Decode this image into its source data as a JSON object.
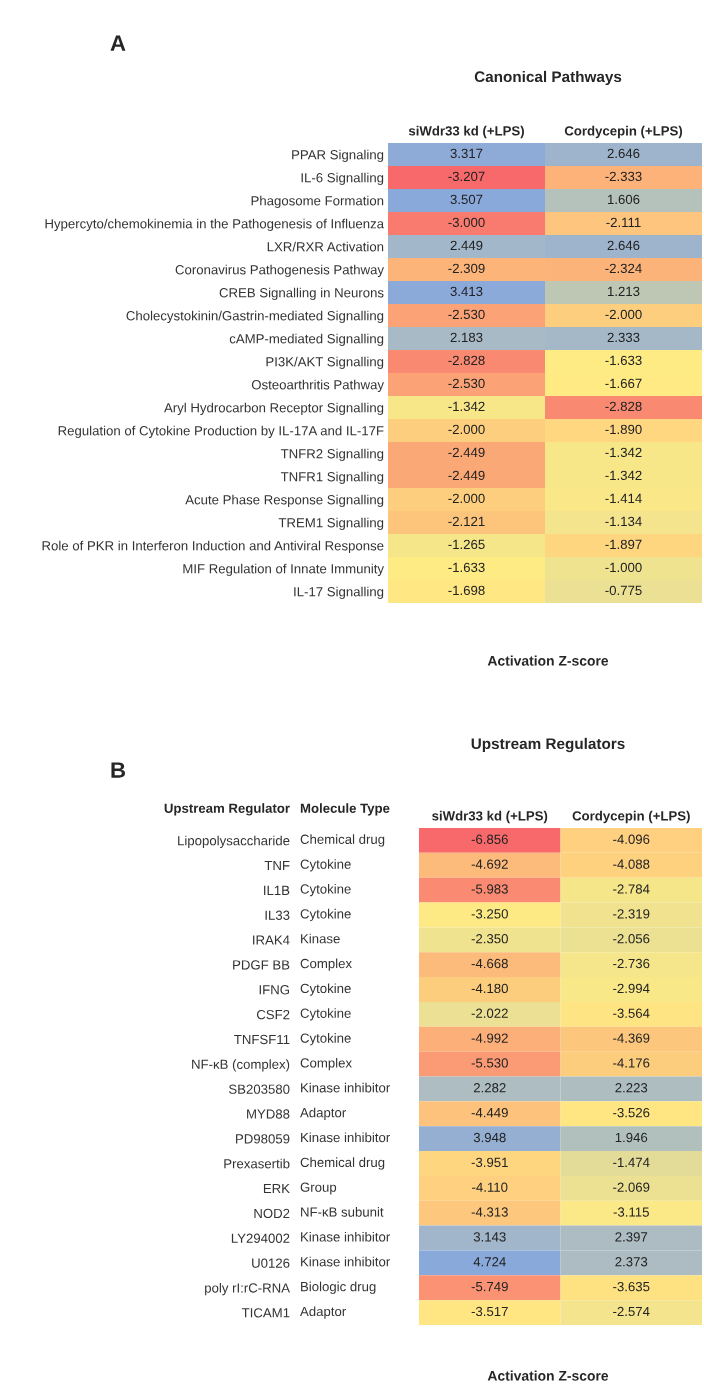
{
  "chart_data": [
    {
      "type": "heatmap",
      "title": "Canonical Pathways",
      "xlabel": "Activation Z-score",
      "annotations": [
        "A"
      ],
      "categories": [
        "siWdr33 kd (+LPS)",
        "Cordycepin (+LPS)"
      ],
      "y_categories": [
        "PPAR Signaling",
        "IL-6 Signalling",
        "Phagosome Formation",
        "Hypercyto/chemokinemia in the Pathogenesis of Influenza",
        "LXR/RXR Activation",
        "Coronavirus Pathogenesis Pathway",
        "CREB Signalling in Neurons",
        "Cholecystokinin/Gastrin-mediated Signalling",
        "cAMP-mediated Signalling",
        "PI3K/AKT Signalling",
        "Osteoarthritis Pathway",
        "Aryl Hydrocarbon Receptor Signalling",
        "Regulation of Cytokine Production by IL-17A and IL-17F",
        "TNFR2 Signalling",
        "TNFR1 Signalling",
        "Acute Phase Response Signalling",
        "TREM1 Signalling",
        "Role of PKR in Interferon Induction and Antiviral Response",
        "MIF Regulation of Innate Immunity",
        "IL-17 Signalling"
      ],
      "cells": [
        [
          3.317,
          2.646
        ],
        [
          -3.207,
          -2.333
        ],
        [
          3.507,
          1.606
        ],
        [
          -3.0,
          -2.111
        ],
        [
          2.449,
          2.646
        ],
        [
          -2.309,
          -2.324
        ],
        [
          3.413,
          1.213
        ],
        [
          -2.53,
          -2.0
        ],
        [
          2.183,
          2.333
        ],
        [
          -2.828,
          -1.633
        ],
        [
          -2.53,
          -1.667
        ],
        [
          -1.342,
          -2.828
        ],
        [
          -2.0,
          -1.89
        ],
        [
          -2.449,
          -1.342
        ],
        [
          -2.449,
          -1.342
        ],
        [
          -2.0,
          -1.414
        ],
        [
          -2.121,
          -1.134
        ],
        [
          -1.265,
          -1.897
        ],
        [
          -1.633,
          -1.0
        ],
        [
          -1.698,
          -0.775
        ]
      ],
      "cell_labels": [
        [
          "3.317",
          "2.646"
        ],
        [
          "-3.207",
          "-2.333"
        ],
        [
          "3.507",
          "1.606"
        ],
        [
          "-3.000",
          "-2.111"
        ],
        [
          "2.449",
          "2.646"
        ],
        [
          "-2.309",
          "-2.324"
        ],
        [
          "3.413",
          "1.213"
        ],
        [
          "-2.530",
          "-2.000"
        ],
        [
          "2.183",
          "2.333"
        ],
        [
          "-2.828",
          "-1.633"
        ],
        [
          "-2.530",
          "-1.667"
        ],
        [
          "-1.342",
          "-2.828"
        ],
        [
          "-2.000",
          "-1.890"
        ],
        [
          "-2.449",
          "-1.342"
        ],
        [
          "-2.449",
          "-1.342"
        ],
        [
          "-2.000",
          "-1.414"
        ],
        [
          "-2.121",
          "-1.134"
        ],
        [
          "-1.265",
          "-1.897"
        ],
        [
          "-1.633",
          "-1.000"
        ],
        [
          "-1.698",
          "-0.775"
        ]
      ]
    },
    {
      "type": "heatmap",
      "title": "Upstream Regulators",
      "xlabel": "Activation Z-score",
      "annotations": [
        "B"
      ],
      "ylabel": "Upstream Regulator",
      "y2label": "Molecule Type",
      "categories": [
        "siWdr33 kd (+LPS)",
        "Cordycepin (+LPS)"
      ],
      "y_categories": [
        "Lipopolysaccharide",
        "TNF",
        "IL1B",
        "IL33",
        "IRAK4",
        "PDGF BB",
        "IFNG",
        "CSF2",
        "TNFSF11",
        "NF-κB (complex)",
        "SB203580",
        "MYD88",
        "PD98059",
        "Prexasertib",
        "ERK",
        "NOD2",
        "LY294002",
        "U0126",
        "poly rI:rC-RNA",
        "TICAM1"
      ],
      "y2_categories": [
        "Chemical drug",
        "Cytokine",
        "Cytokine",
        "Cytokine",
        "Kinase",
        "Complex",
        "Cytokine",
        "Cytokine",
        "Cytokine",
        "Complex",
        "Kinase inhibitor",
        "Adaptor",
        "Kinase inhibitor",
        "Chemical drug",
        "Group",
        "NF-κB subunit",
        "Kinase inhibitor",
        "Kinase inhibitor",
        "Biologic drug",
        "Adaptor"
      ],
      "cells": [
        [
          -6.856,
          -4.096
        ],
        [
          -4.692,
          -4.088
        ],
        [
          -5.983,
          -2.784
        ],
        [
          -3.25,
          -2.319
        ],
        [
          -2.35,
          -2.056
        ],
        [
          -4.668,
          -2.736
        ],
        [
          -4.18,
          -2.994
        ],
        [
          -2.022,
          -3.564
        ],
        [
          -4.992,
          -4.369
        ],
        [
          -5.53,
          -4.176
        ],
        [
          2.282,
          2.223
        ],
        [
          -4.449,
          -3.526
        ],
        [
          3.948,
          1.946
        ],
        [
          -3.951,
          -1.474
        ],
        [
          -4.11,
          -2.069
        ],
        [
          -4.313,
          -3.115
        ],
        [
          3.143,
          2.397
        ],
        [
          4.724,
          2.373
        ],
        [
          -5.749,
          -3.635
        ],
        [
          -3.517,
          -2.574
        ]
      ],
      "cell_labels": [
        [
          "-6.856",
          "-4.096"
        ],
        [
          "-4.692",
          "-4.088"
        ],
        [
          "-5.983",
          "-2.784"
        ],
        [
          "-3.250",
          "-2.319"
        ],
        [
          "-2.350",
          "-2.056"
        ],
        [
          "-4.668",
          "-2.736"
        ],
        [
          "-4.180",
          "-2.994"
        ],
        [
          "-2.022",
          "-3.564"
        ],
        [
          "-4.992",
          "-4.369"
        ],
        [
          "-5.530",
          "-4.176"
        ],
        [
          "2.282",
          "2.223"
        ],
        [
          "-4.449",
          "-3.526"
        ],
        [
          "3.948",
          "1.946"
        ],
        [
          "-3.951",
          "-1.474"
        ],
        [
          "-4.110",
          "-2.069"
        ],
        [
          "-4.313",
          "-3.115"
        ],
        [
          "3.143",
          "2.397"
        ],
        [
          "4.724",
          "2.373"
        ],
        [
          "-5.749",
          "-3.635"
        ],
        [
          "-3.517",
          "-2.574"
        ]
      ]
    }
  ]
}
